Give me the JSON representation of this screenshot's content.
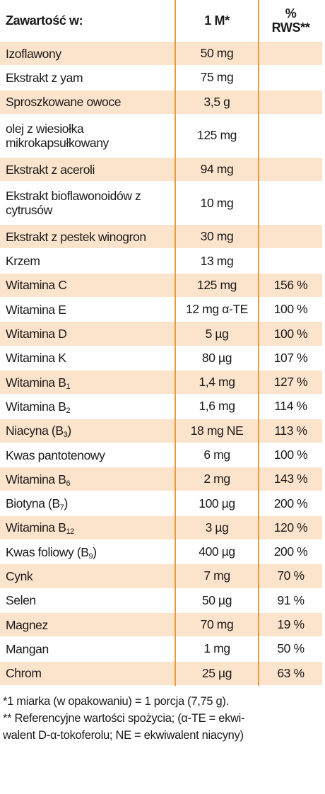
{
  "header": {
    "col1": "Zawartość w:",
    "col2": "1 M*",
    "col3_top": "%",
    "col3_bottom": "RWS**"
  },
  "rows": [
    {
      "name": "Izoflawony",
      "sub": "",
      "amount": "50 mg",
      "rws": ""
    },
    {
      "name": "Ekstrakt z yam",
      "sub": "",
      "amount": "75 mg",
      "rws": ""
    },
    {
      "name": "Sproszkowane owoce",
      "sub": "",
      "amount": "3,5 g",
      "rws": ""
    },
    {
      "name": "olej z wiesiołka mikrokapsułkowany",
      "sub": "",
      "amount": "125 mg",
      "rws": ""
    },
    {
      "name": "Ekstrakt z aceroli",
      "sub": "",
      "amount": "94 mg",
      "rws": ""
    },
    {
      "name": "Ekstrakt bioflawonoidów z cytrusów",
      "sub": "",
      "amount": "10 mg",
      "rws": ""
    },
    {
      "name": "Ekstrakt z pestek winogron",
      "sub": "",
      "amount": "30 mg",
      "rws": ""
    },
    {
      "name": "Krzem",
      "sub": "",
      "amount": "13 mg",
      "rws": ""
    },
    {
      "name": "Witamina C",
      "sub": "",
      "amount": "125 mg",
      "rws": "156 %"
    },
    {
      "name": "Witamina E",
      "sub": "",
      "amount": "12 mg α-TE",
      "rws": "100 %"
    },
    {
      "name": "Witamina D",
      "sub": "",
      "amount": "5 µg",
      "rws": "100 %"
    },
    {
      "name": "Witamina K",
      "sub": "",
      "amount": "80 µg",
      "rws": "107 %"
    },
    {
      "name": "Witamina B",
      "sub": "1",
      "amount": "1,4 mg",
      "rws": "127 %"
    },
    {
      "name": "Witamina B",
      "sub": "2",
      "amount": "1,6 mg",
      "rws": "114 %"
    },
    {
      "name": "Niacyna (B",
      "sub": "3",
      "suffix": ")",
      "amount": "18 mg NE",
      "rws": "113 %"
    },
    {
      "name": "Kwas pantotenowy",
      "sub": "",
      "amount": "6 mg",
      "rws": "100 %"
    },
    {
      "name": "Witamina B",
      "sub": "6",
      "amount": "2 mg",
      "rws": "143 %"
    },
    {
      "name": "Biotyna (B",
      "sub": "7",
      "suffix": ")",
      "amount": "100 µg",
      "rws": "200 %"
    },
    {
      "name": "Witamina B",
      "sub": "12",
      "amount": "3 µg",
      "rws": "120 %"
    },
    {
      "name": "Kwas foliowy (B",
      "sub": "9",
      "suffix": ")",
      "amount": "400 µg",
      "rws": "200 %"
    },
    {
      "name": "Cynk",
      "sub": "",
      "amount": "7 mg",
      "rws": "70 %"
    },
    {
      "name": "Selen",
      "sub": "",
      "amount": "50 µg",
      "rws": "91 %"
    },
    {
      "name": "Magnez",
      "sub": "",
      "amount": "70 mg",
      "rws": "19 %"
    },
    {
      "name": "Mangan",
      "sub": "",
      "amount": "1 mg",
      "rws": "50 %"
    },
    {
      "name": "Chrom",
      "sub": "",
      "amount": "25 µg",
      "rws": "63 %"
    }
  ],
  "footnotes": {
    "line1": "*1 miarka (w opakowaniu) = 1 porcja (7,75 g).",
    "line2": "** Referencyjne wartości spożycia; (α-TE = ekwi-",
    "line3": "walent D-α-tokoferolu; NE = ekwiwalent niacyny)"
  },
  "colors": {
    "divider": "#e89a3c",
    "row_shade": "#fce3cc"
  }
}
